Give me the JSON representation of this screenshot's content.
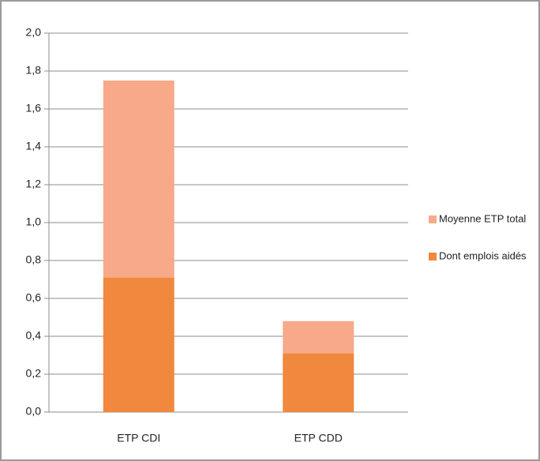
{
  "chart_data": {
    "type": "stacked-bar",
    "categories": [
      "ETP CDI",
      "ETP CDD"
    ],
    "series": [
      {
        "name": "Moyenne ETP total",
        "color": "#f7a98a",
        "values": [
          1.04,
          0.17
        ]
      },
      {
        "name": "Dont emplois aidés",
        "color": "#f0883e",
        "values": [
          0.71,
          0.31
        ]
      }
    ],
    "ylim": [
      0,
      2
    ],
    "yticks": [
      {
        "value": 0,
        "label": "0,0"
      },
      {
        "value": 0.2,
        "label": "0,2"
      },
      {
        "value": 0.4,
        "label": "0,4"
      },
      {
        "value": 0.6,
        "label": "0,6"
      },
      {
        "value": 0.8,
        "label": "0,8"
      },
      {
        "value": 1,
        "label": "1,0"
      },
      {
        "value": 1.2,
        "label": "1,2"
      },
      {
        "value": 1.4,
        "label": "1,4"
      },
      {
        "value": 1.6,
        "label": "1,6"
      },
      {
        "value": 1.8,
        "label": "1,8"
      },
      {
        "value": 2,
        "label": "2,0"
      }
    ],
    "grid": true,
    "legend": "right"
  }
}
